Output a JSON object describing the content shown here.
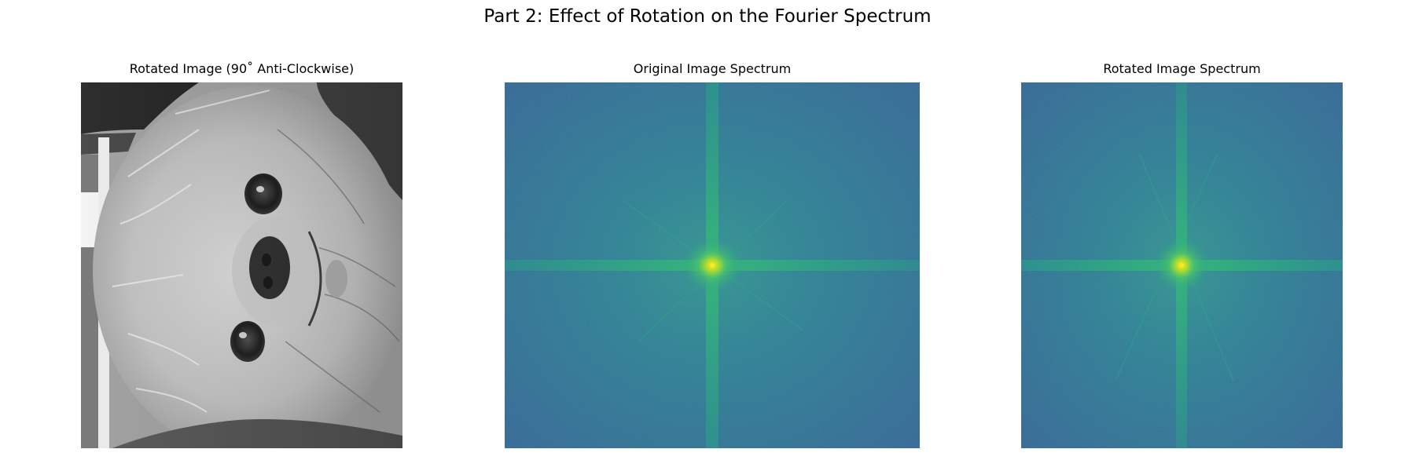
{
  "figure": {
    "title": "Part 2: Effect of Rotation on the Fourier Spectrum"
  },
  "panels": [
    {
      "title": "Rotated Image (90˚ Anti-Clockwise)",
      "content": "rotated grayscale photograph of a dog's face"
    },
    {
      "title": "Original Image Spectrum",
      "content": "log-magnitude Fourier spectrum, viridis colormap"
    },
    {
      "title": "Rotated Image Spectrum",
      "content": "log-magnitude Fourier spectrum, viridis colormap"
    }
  ],
  "colors": {
    "spectrum_background": "#2e6b8e",
    "spectrum_axis": "#2a9d8a",
    "spectrum_peak": "#fde725",
    "photo_light": "#e2e2e2",
    "photo_dark": "#1a1a1a"
  }
}
